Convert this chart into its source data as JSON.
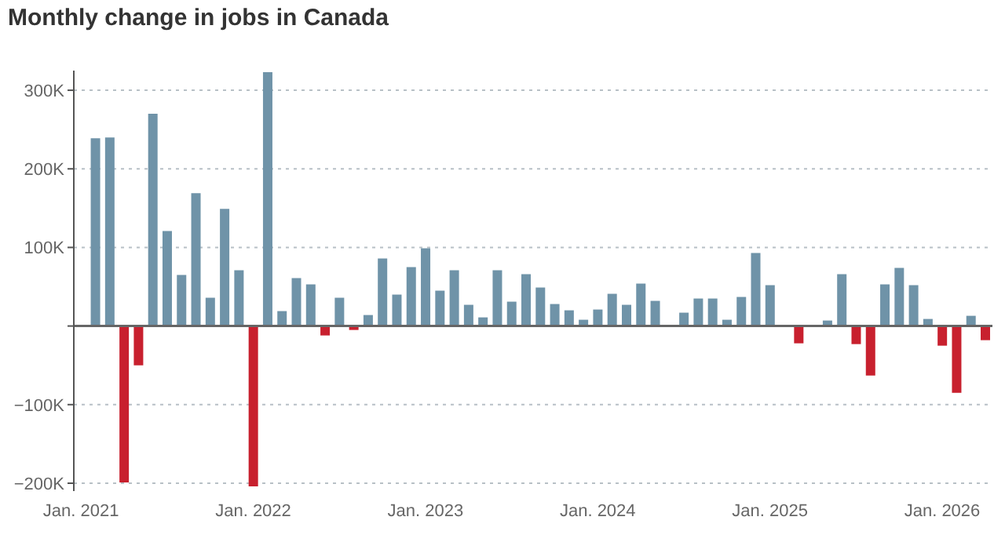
{
  "chart_data": {
    "type": "bar",
    "title": "Monthly change in jobs in Canada",
    "categories": [
      "Jan. 2021",
      null,
      null,
      null,
      null,
      null,
      null,
      null,
      null,
      null,
      null,
      null,
      "Jan. 2022",
      null,
      null,
      null,
      null,
      null,
      null,
      null,
      null,
      null,
      null,
      null,
      "Jan. 2023",
      null,
      null,
      null,
      null,
      null,
      null,
      null,
      null,
      null,
      null,
      null,
      "Jan. 2024",
      null,
      null,
      null,
      null,
      null,
      null,
      null,
      null,
      null,
      null,
      null,
      "Jan. 2025",
      null,
      null,
      null,
      null,
      null,
      null,
      null,
      null,
      null,
      null,
      null,
      "Jan. 2026",
      null,
      null,
      null
    ],
    "values": [
      null,
      239000,
      240000,
      -199000,
      -50000,
      270000,
      121000,
      65000,
      169000,
      36000,
      149000,
      71000,
      -204000,
      323000,
      19000,
      61000,
      53000,
      -12000,
      36000,
      -5000,
      14000,
      86000,
      40000,
      75000,
      99000,
      45000,
      71000,
      27000,
      11000,
      71000,
      31000,
      66000,
      49000,
      28000,
      20000,
      8000,
      21000,
      41000,
      27000,
      54000,
      32000,
      0,
      17000,
      35000,
      35000,
      8000,
      37000,
      93000,
      52000,
      0,
      -22000,
      0,
      7000,
      66000,
      -23000,
      -63000,
      53000,
      74000,
      52000,
      9000,
      -25000,
      -85000,
      13000,
      -18000
    ],
    "colors": [
      "#6f93a8",
      "#6f93a8",
      "#6f93a8",
      "#c8202e",
      "#c8202e",
      "#6f93a8",
      "#6f93a8",
      "#6f93a8",
      "#6f93a8",
      "#6f93a8",
      "#6f93a8",
      "#6f93a8",
      "#c8202e",
      "#6f93a8",
      "#6f93a8",
      "#6f93a8",
      "#6f93a8",
      "#c8202e",
      "#6f93a8",
      "#c8202e",
      "#6f93a8",
      "#6f93a8",
      "#6f93a8",
      "#6f93a8",
      "#6f93a8",
      "#6f93a8",
      "#6f93a8",
      "#6f93a8",
      "#6f93a8",
      "#6f93a8",
      "#6f93a8",
      "#6f93a8",
      "#6f93a8",
      "#6f93a8",
      "#6f93a8",
      "#6f93a8",
      "#6f93a8",
      "#6f93a8",
      "#6f93a8",
      "#6f93a8",
      "#6f93a8",
      "#6f93a8",
      "#6f93a8",
      "#6f93a8",
      "#6f93a8",
      "#6f93a8",
      "#6f93a8",
      "#6f93a8",
      "#6f93a8",
      "#6f93a8",
      "#c8202e",
      "#6f93a8",
      "#6f93a8",
      "#6f93a8",
      "#c8202e",
      "#c8202e",
      "#6f93a8",
      "#6f93a8",
      "#6f93a8",
      "#6f93a8",
      "#c8202e",
      "#c8202e",
      "#6f93a8",
      "#c8202e"
    ],
    "ylim": [
      -210000,
      325000
    ],
    "yticks": [
      {
        "value": -200000,
        "label": "−200K"
      },
      {
        "value": -100000,
        "label": "−100K"
      },
      {
        "value": 0,
        "label": null
      },
      {
        "value": 100000,
        "label": "100K"
      },
      {
        "value": 200000,
        "label": "200K"
      },
      {
        "value": 300000,
        "label": "300K"
      }
    ],
    "ref_lines": [
      {
        "axis": "y",
        "value": 0,
        "color": "#666666"
      }
    ],
    "grid": "y"
  }
}
